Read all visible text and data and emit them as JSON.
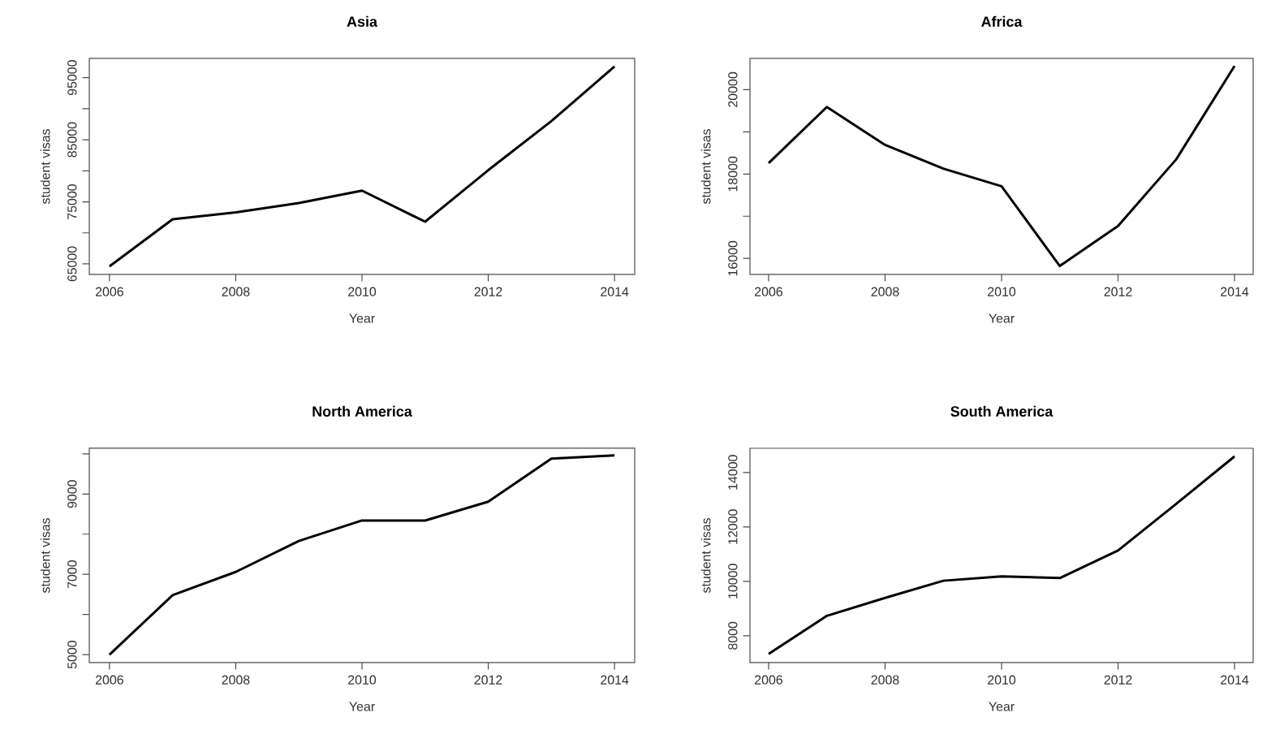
{
  "chart_data": [
    {
      "type": "line",
      "title": "Asia",
      "xlabel": "Year",
      "ylabel": "student visas",
      "x": [
        2006,
        2007,
        2008,
        2009,
        2010,
        2011,
        2012,
        2013,
        2014
      ],
      "series": [
        {
          "color": "#000000",
          "values": [
            64600,
            72200,
            73300,
            74800,
            76800,
            71800,
            80100,
            88000,
            96800
          ]
        }
      ],
      "xlim": [
        2005.68,
        2014.32
      ],
      "ylim": [
        63300,
        98100
      ],
      "xticks": [
        2006,
        2008,
        2010,
        2012,
        2014
      ],
      "yticks": [
        65000,
        {
          "value": 70000,
          "label": null
        },
        75000,
        {
          "value": 80000,
          "label": null
        },
        85000,
        {
          "value": 90000,
          "label": null
        },
        95000
      ],
      "grid": false
    },
    {
      "type": "line",
      "title": "Africa",
      "xlabel": "Year",
      "ylabel": "student visas",
      "x": [
        2006,
        2007,
        2008,
        2009,
        2010,
        2011,
        2012,
        2013,
        2014
      ],
      "series": [
        {
          "color": "#000000",
          "values": [
            18260,
            19590,
            18690,
            18130,
            17710,
            15820,
            16770,
            18350,
            20560
          ]
        }
      ],
      "xlim": [
        2005.68,
        2014.32
      ],
      "ylim": [
        15620,
        20740
      ],
      "xticks": [
        2006,
        2008,
        2010,
        2012,
        2014
      ],
      "yticks": [
        16000,
        {
          "value": 17000,
          "label": null
        },
        18000,
        {
          "value": 19000,
          "label": null
        },
        20000
      ],
      "grid": false
    },
    {
      "type": "line",
      "title": "North America",
      "xlabel": "Year",
      "ylabel": "student visas",
      "x": [
        2006,
        2007,
        2008,
        2009,
        2010,
        2011,
        2012,
        2013,
        2014
      ],
      "series": [
        {
          "color": "#000000",
          "values": [
            5000,
            6480,
            7060,
            7830,
            8340,
            8340,
            8810,
            9880,
            9960
          ]
        }
      ],
      "xlim": [
        2005.68,
        2014.32
      ],
      "ylim": [
        4800,
        10140
      ],
      "xticks": [
        2006,
        2008,
        2010,
        2012,
        2014
      ],
      "yticks": [
        5000,
        {
          "value": 6000,
          "label": null
        },
        7000,
        {
          "value": 8000,
          "label": null
        },
        9000,
        {
          "value": 10000,
          "label": null
        }
      ],
      "grid": false
    },
    {
      "type": "line",
      "title": "South America",
      "xlabel": "Year",
      "ylabel": "student visas",
      "x": [
        2006,
        2007,
        2008,
        2009,
        2010,
        2011,
        2012,
        2013,
        2014
      ],
      "series": [
        {
          "color": "#000000",
          "values": [
            7330,
            8730,
            9390,
            10020,
            10180,
            10120,
            11130,
            12850,
            14590
          ]
        }
      ],
      "xlim": [
        2005.68,
        2014.32
      ],
      "ylim": [
        7010,
        14890
      ],
      "xticks": [
        2006,
        2008,
        2010,
        2012,
        2014
      ],
      "yticks": [
        8000,
        10000,
        12000,
        14000
      ],
      "grid": false
    }
  ]
}
